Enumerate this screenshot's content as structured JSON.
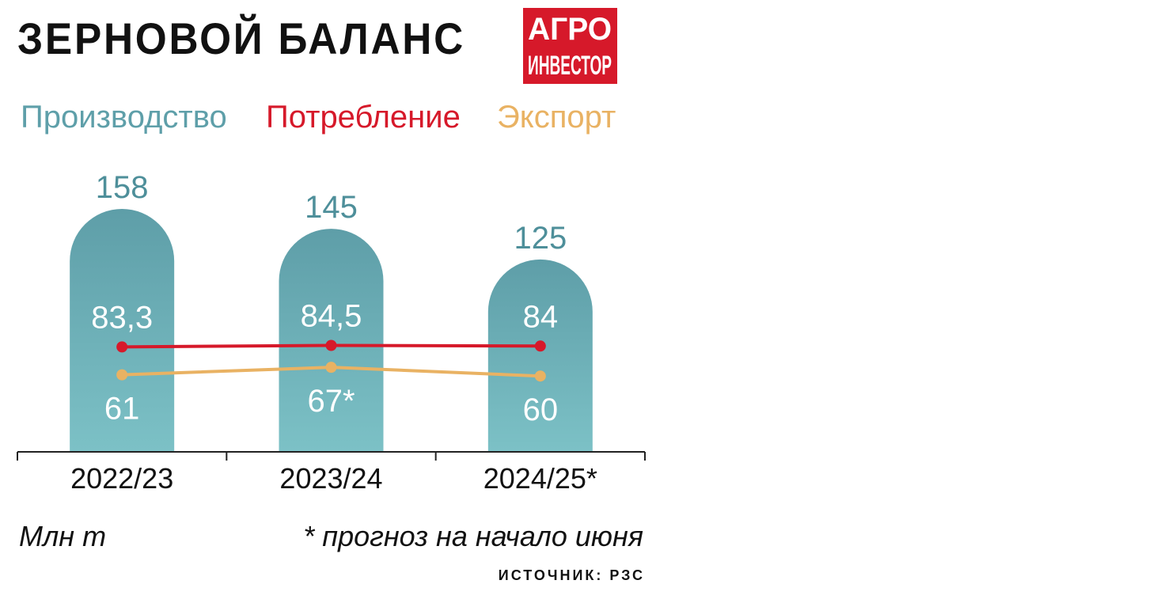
{
  "chart_data": {
    "type": "bar",
    "title": "ЗЕРНОВОЙ БАЛАНС",
    "logo": [
      "АГРО",
      "ИНВЕСТОР"
    ],
    "categories": [
      "2022/23",
      "2023/24",
      "2024/25*"
    ],
    "series": [
      {
        "name": "Производство",
        "type": "bar",
        "color": "#5e9fa9",
        "values": [
          158,
          145,
          125
        ]
      },
      {
        "name": "Потребление",
        "type": "line",
        "color": "#d6192a",
        "values": [
          83.3,
          84.5,
          84
        ],
        "value_labels": [
          "83,3",
          "84,5",
          "84"
        ]
      },
      {
        "name": "Экспорт",
        "type": "line",
        "color": "#e9b263",
        "values": [
          61,
          67,
          60
        ],
        "value_labels": [
          "61",
          "67*",
          "60"
        ]
      }
    ],
    "unit_note": "Млн т",
    "footnote": "* прогноз на начало июня",
    "source": "ИСТОЧНИК: РЗС"
  }
}
